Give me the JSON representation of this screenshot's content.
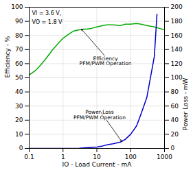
{
  "chart_data": {
    "type": "line",
    "xlabel": "IO - Load Current - mA",
    "ylabel": "Efficiency - %",
    "y2label": "Power Loss - mW",
    "log": "x",
    "grid": true,
    "xlim": [
      0.1,
      1000
    ],
    "xticks": [
      0.1,
      1,
      10,
      100,
      1000
    ],
    "ylim": [
      0,
      100
    ],
    "yticks": [
      0,
      10,
      20,
      30,
      40,
      50,
      60,
      70,
      80,
      90,
      100
    ],
    "y2lim": [
      0,
      200
    ],
    "y2ticks": [
      0,
      20,
      40,
      60,
      80,
      100,
      120,
      140,
      160,
      180,
      200
    ],
    "series": [
      {
        "color": "#00aa00",
        "x": [
          0.1,
          0.15,
          0.2,
          0.3,
          0.4,
          0.5,
          0.7,
          1.0,
          1.5,
          2.0,
          3.0,
          4.0,
          5.0,
          7.0,
          10.0,
          15.0,
          20.0,
          30.0,
          50.0,
          70.0,
          100.0,
          150.0,
          200.0,
          300.0,
          500.0,
          700.0,
          1000.0
        ],
        "values": [
          52,
          55,
          58,
          63,
          67,
          70,
          74,
          78,
          81,
          83,
          84,
          84.5,
          84.5,
          85,
          86,
          87,
          87.5,
          87.5,
          87,
          88,
          88,
          88.5,
          88,
          87,
          86,
          85,
          84
        ]
      },
      {
        "color": "#0000cc",
        "axis": "y2",
        "x": [
          0.1,
          0.2,
          0.5,
          1.0,
          2.0,
          3.0,
          5.0,
          7.0,
          10.0,
          15.0,
          20.0,
          30.0,
          50.0,
          70.0,
          100.0,
          150.0,
          200.0,
          300.0,
          500.0,
          600.0
        ],
        "values": [
          0,
          0,
          0,
          0,
          0,
          0.3,
          1.0,
          1.5,
          2.0,
          3.5,
          5.0,
          6.5,
          9.0,
          13.0,
          20.0,
          32.0,
          48.0,
          72.0,
          130.0,
          190.0
        ]
      }
    ],
    "annotations": [
      {
        "text": "VI = 3.6 V,",
        "x": 0.12,
        "y": 97
      },
      {
        "text": "VO = 1.8 V",
        "x": 0.12,
        "y": 91
      },
      {
        "text": "Efficiency\nPFM/PWM Operation",
        "x": 18,
        "y": 65,
        "arrow_x": 3.5,
        "arrow_y": 84.5
      },
      {
        "text": "Power Loss\nPFM/PWM Operation",
        "x": 12,
        "y": 27,
        "arrow_x": 55,
        "arrow_y": 4.75
      }
    ]
  }
}
